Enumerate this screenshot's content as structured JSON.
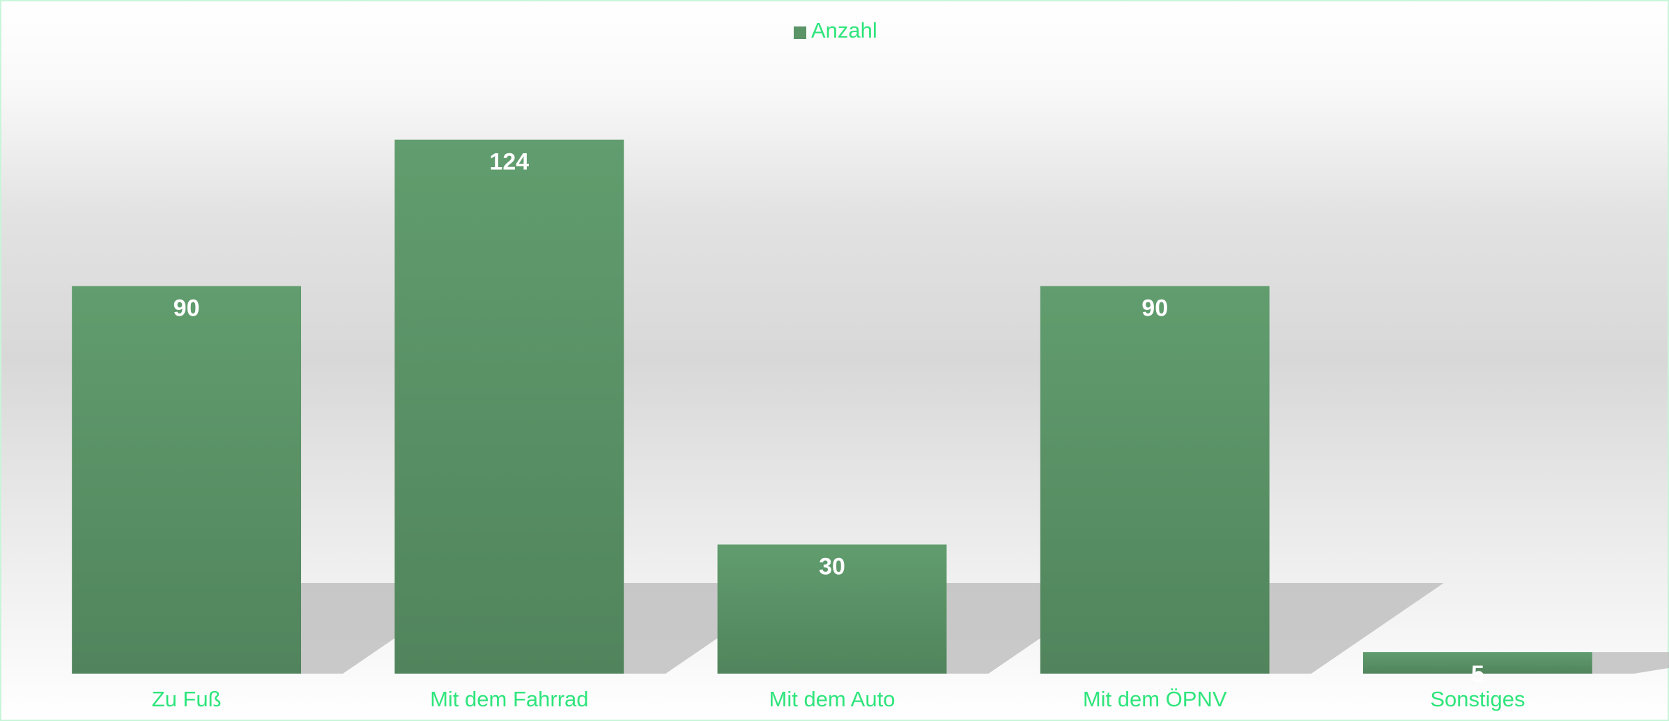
{
  "chart_data": {
    "type": "bar",
    "categories": [
      "Zu Fuß",
      "Mit dem Fahrrad",
      "Mit dem Auto",
      "Mit dem ÖPNV",
      "Sonstiges"
    ],
    "series": [
      {
        "name": "Anzahl",
        "color": "#5a9467",
        "values": [
          90,
          124,
          30,
          90,
          5
        ]
      }
    ],
    "ylim": [
      0,
      155
    ],
    "legend": "top"
  }
}
